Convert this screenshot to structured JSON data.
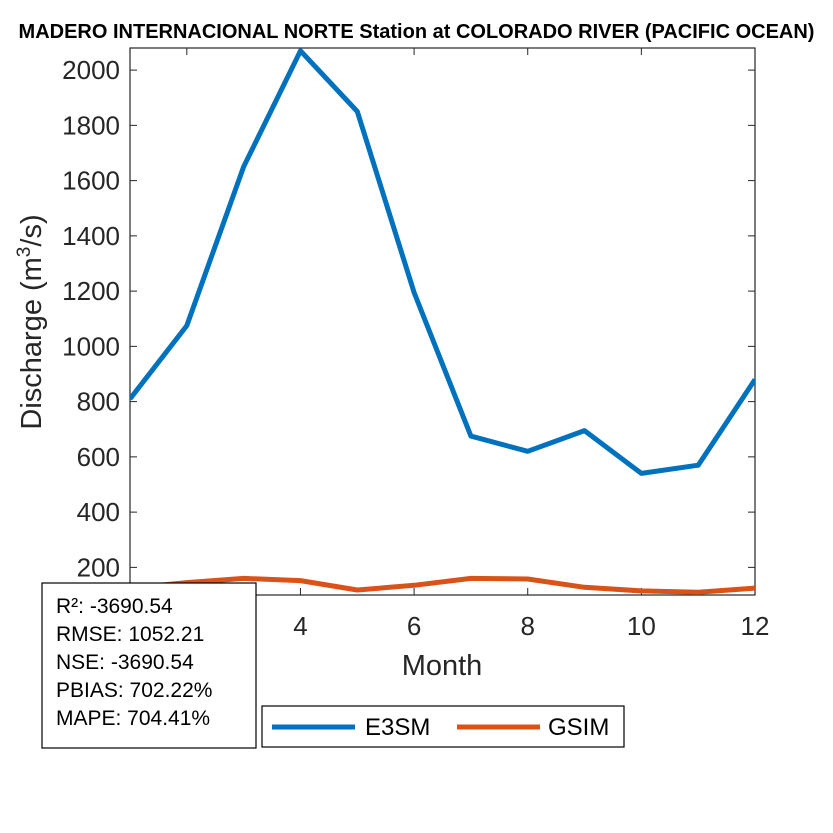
{
  "chart_data": {
    "type": "line",
    "title": "MADERO INTERNACIONAL NORTE  Station at  COLORADO RIVER (PACIFIC OCEAN)",
    "xlabel": "Month",
    "ylabel_main": "Discharge (m",
    "ylabel_sup": "3",
    "ylabel_end": "/s)",
    "xlim": [
      1,
      12
    ],
    "ylim": [
      100,
      2080
    ],
    "xticks": [
      4,
      6,
      8,
      10,
      12
    ],
    "yticks": [
      200,
      400,
      600,
      800,
      1000,
      1200,
      1400,
      1600,
      1800,
      2000
    ],
    "x": [
      1,
      2,
      3,
      4,
      5,
      6,
      7,
      8,
      9,
      10,
      11,
      12
    ],
    "series": [
      {
        "name": "E3SM",
        "color": "#0072BD",
        "values": [
          810,
          1075,
          1650,
          2070,
          1850,
          1195,
          675,
          620,
          695,
          540,
          570,
          880
        ]
      },
      {
        "name": "GSIM",
        "color": "#D95319",
        "values": [
          125,
          145,
          160,
          152,
          118,
          135,
          160,
          158,
          128,
          115,
          110,
          125
        ]
      }
    ],
    "stats": [
      "R²: -3690.54",
      "RMSE: 1052.21",
      "NSE: -3690.54",
      "PBIAS: 702.22%",
      "MAPE: 704.41%"
    ],
    "grid": false,
    "legend_position": "bottom, horizontal"
  }
}
